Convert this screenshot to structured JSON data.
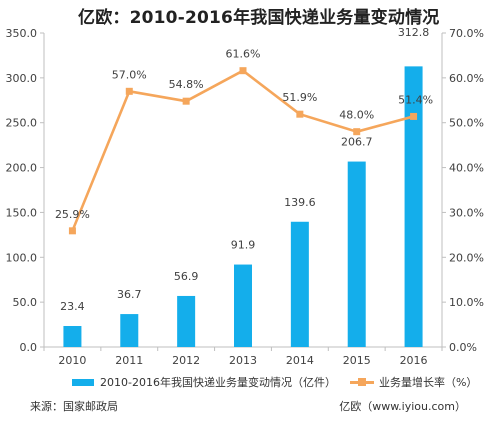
{
  "title": "亿欧：2010-2016年我国快递业务量变动情况",
  "source": "来源：国家邮政局",
  "site": "亿欧（www.iyiou.com）",
  "colors": {
    "bar": "#14AEEB",
    "line": "#F5A65B"
  },
  "chart_data": {
    "type": "bar",
    "categories": [
      "2010",
      "2011",
      "2012",
      "2013",
      "2014",
      "2015",
      "2016"
    ],
    "series": [
      {
        "name": "2010-2016年我国快递业务量变动情况（亿件）",
        "type": "bar",
        "axis": "left",
        "values": [
          23.4,
          36.7,
          56.9,
          91.9,
          139.6,
          206.7,
          312.8
        ],
        "labels": [
          "23.4",
          "36.7",
          "56.9",
          "91.9",
          "139.6",
          "206.7",
          "312.8"
        ]
      },
      {
        "name": "业务量增长率（%）",
        "type": "line",
        "axis": "right",
        "values": [
          25.9,
          57.0,
          54.8,
          61.6,
          51.9,
          48.0,
          51.4
        ],
        "labels": [
          "25.9%",
          "57.0%",
          "54.8%",
          "61.6%",
          "51.9%",
          "48.0%",
          "51.4%"
        ]
      }
    ],
    "y_left": {
      "range": [
        0,
        350
      ],
      "ticks": [
        0,
        50,
        100,
        150,
        200,
        250,
        300,
        350
      ],
      "tick_labels": [
        "0.0",
        "50.0",
        "100.0",
        "150.0",
        "200.0",
        "250.0",
        "300.0",
        "350.0"
      ]
    },
    "y_right": {
      "range": [
        0,
        70
      ],
      "ticks": [
        0,
        10,
        20,
        30,
        40,
        50,
        60,
        70
      ],
      "tick_labels": [
        "0.0%",
        "10.0%",
        "20.0%",
        "30.0%",
        "40.0%",
        "50.0%",
        "60.0%",
        "70.0%"
      ]
    },
    "grid": false,
    "legend_position": "bottom"
  }
}
